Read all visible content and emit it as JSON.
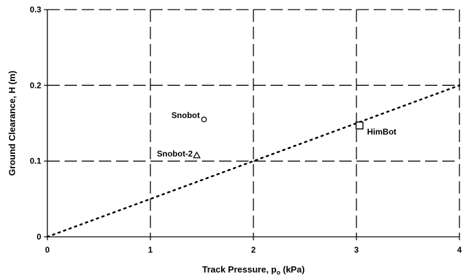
{
  "chart_data": {
    "type": "scatter",
    "xlabel_main": "Track Pressure, p",
    "xlabel_sub": "o",
    "xlabel_unit": " (kPa)",
    "ylabel": "Ground Clearance, H (m)",
    "xlim": [
      0,
      4
    ],
    "ylim": [
      0,
      0.3
    ],
    "x_ticks": [
      "0",
      "1",
      "2",
      "3",
      "4"
    ],
    "y_ticks": [
      "0",
      "0.1",
      "0.2",
      "0.3"
    ],
    "grid": "dashed",
    "points": [
      {
        "label": "Snobot",
        "x": 1.52,
        "y": 0.155,
        "marker": "circle"
      },
      {
        "label": "Snobot-2",
        "x": 1.45,
        "y": 0.108,
        "marker": "triangle"
      },
      {
        "label": "HimBot",
        "x": 3.03,
        "y": 0.147,
        "marker": "square"
      }
    ],
    "line": {
      "style": "dotted",
      "x": [
        0,
        4
      ],
      "y": [
        0,
        0.2
      ]
    }
  }
}
